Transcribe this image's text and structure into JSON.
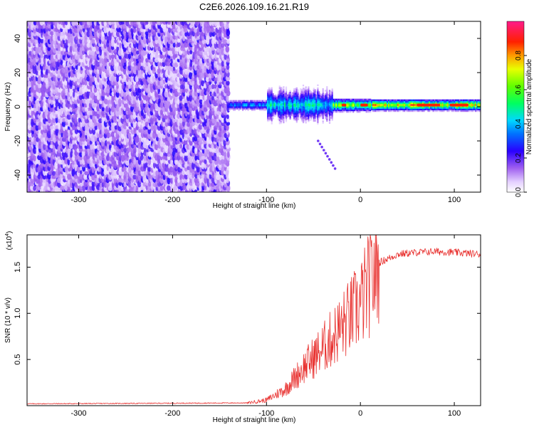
{
  "chart_data": [
    {
      "type": "heatmap",
      "title": "C2E6.2026.109.16.21.R19",
      "xlabel": "Height of straight line (km)",
      "ylabel": "Frequency (Hz)",
      "xlim": [
        -355,
        128
      ],
      "ylim": [
        -50,
        50
      ],
      "xticks": [
        -300,
        -200,
        -100,
        0,
        100
      ],
      "xtick_labels": [
        "-300",
        "-200",
        "-100",
        "0",
        "100"
      ],
      "yticks": [
        -40,
        -20,
        0,
        20,
        40
      ],
      "ytick_labels": [
        "-40",
        "-20",
        "0",
        "20",
        "40"
      ],
      "noise_region_x": [
        -355,
        -140
      ],
      "signal_centre_hz": 1,
      "colorbar": {
        "label": "Normalized spectral amplitude",
        "range": [
          0,
          1
        ],
        "ticks": [
          0.0,
          0.2,
          0.4,
          0.6,
          0.8
        ],
        "tick_labels": [
          "0.0",
          "0.2",
          "0.4",
          "0.6",
          "0.8"
        ],
        "colors": [
          "#ffffff",
          "#d8b8ff",
          "#8a2be2",
          "#0000ff",
          "#00bfff",
          "#00ff7f",
          "#7fff00",
          "#ffff00",
          "#ff8c00",
          "#ff0000",
          "#ff1493"
        ]
      }
    },
    {
      "type": "line",
      "series_name": "SNR",
      "xlabel": "Height of straight line (km)",
      "ylabel": "SNR (10 * v/v)",
      "y_multiplier_label": "(x10",
      "y_multiplier_exp": "4",
      "xlim": [
        -355,
        128
      ],
      "ylim": [
        0,
        1.85
      ],
      "xticks": [
        -300,
        -200,
        -100,
        0,
        100
      ],
      "xtick_labels": [
        "-300",
        "-200",
        "-100",
        "0",
        "100"
      ],
      "yticks": [
        0.5,
        1.0,
        1.5
      ],
      "ytick_labels": [
        "0.5",
        "1.0",
        "1.5"
      ],
      "line_color": "#e8302e",
      "profile": {
        "x": [
          -355,
          -120,
          -100,
          -80,
          -60,
          -40,
          -20,
          0,
          20,
          40,
          60,
          80,
          100,
          128
        ],
        "y": [
          0.02,
          0.03,
          0.06,
          0.18,
          0.42,
          0.62,
          0.85,
          1.1,
          1.55,
          1.64,
          1.66,
          1.67,
          1.66,
          1.64
        ]
      }
    }
  ]
}
